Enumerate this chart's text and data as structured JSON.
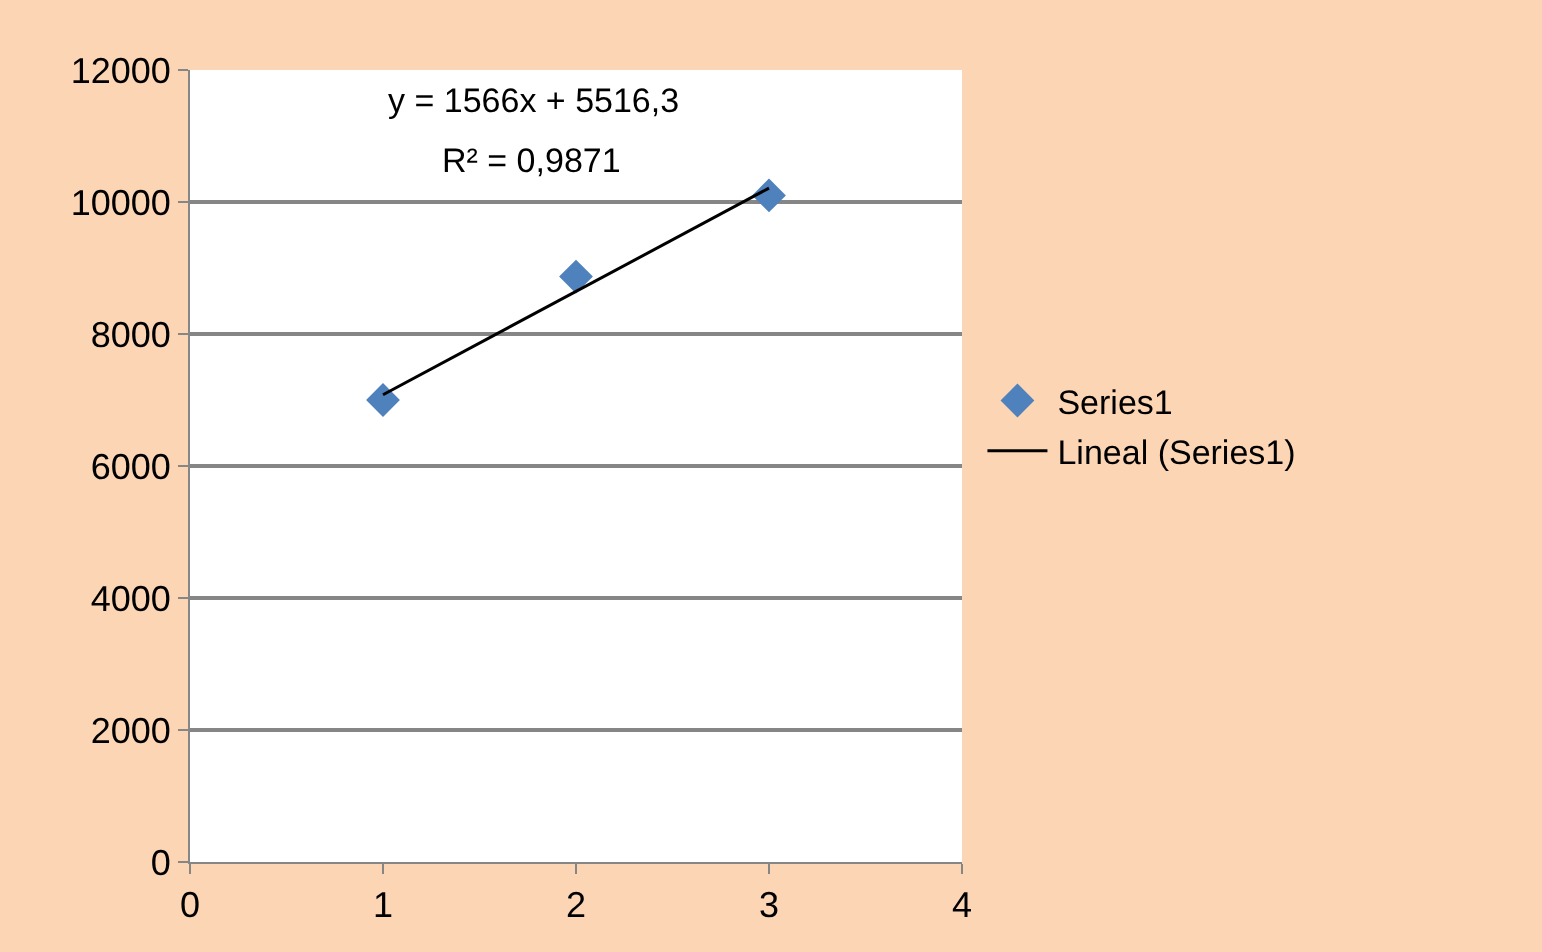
{
  "chart_data": {
    "type": "scatter",
    "x": [
      1,
      2,
      3
    ],
    "series": [
      {
        "name": "Series1",
        "color": "#4f81bd",
        "values": [
          7000,
          8870,
          10100
        ],
        "marker": "diamond"
      },
      {
        "name": "Lineal (Series1)",
        "type": "line",
        "color": "#000000",
        "x": [
          1,
          3
        ],
        "values": [
          7080,
          10210
        ],
        "marker": "none",
        "line_style": "solid"
      }
    ],
    "annotations": [
      "y = 1566x + 5516,3",
      "R² = 0,9871"
    ],
    "xlim": [
      0,
      4
    ],
    "xticks": [
      0,
      1,
      2,
      3,
      4
    ],
    "ylim": [
      0,
      12000
    ],
    "yticks": [
      0,
      2000,
      4000,
      6000,
      8000,
      10000,
      12000
    ],
    "grid": "y",
    "legend": "right"
  }
}
